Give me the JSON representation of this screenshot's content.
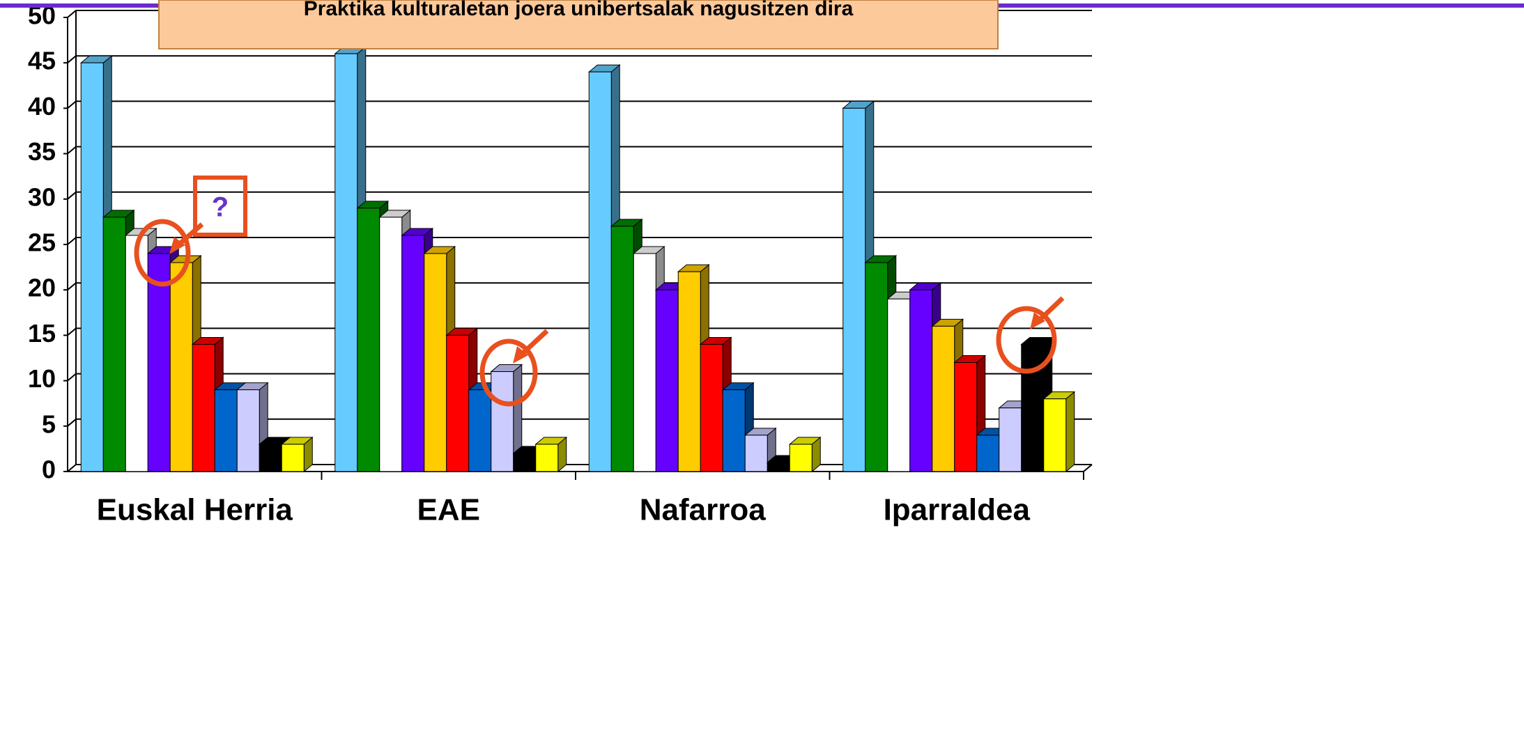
{
  "chart_data": {
    "type": "bar3d",
    "title": "Praktika kulturaletan joera unibertsalak nagusitzen dira",
    "categories": [
      "Euskal Herria",
      "EAE",
      "Nafarroa",
      "Iparraldea"
    ],
    "series": [
      {
        "color": "#66ccff",
        "values": [
          45,
          46,
          44,
          40
        ]
      },
      {
        "color": "#008a00",
        "values": [
          28,
          29,
          27,
          23
        ]
      },
      {
        "color": "#ffffff",
        "values": [
          26,
          28,
          24,
          19
        ]
      },
      {
        "color": "#6600ff",
        "values": [
          24,
          26,
          20,
          20
        ]
      },
      {
        "color": "#ffcc00",
        "values": [
          23,
          24,
          22,
          16
        ]
      },
      {
        "color": "#ff0000",
        "values": [
          14,
          15,
          14,
          12
        ]
      },
      {
        "color": "#0066cc",
        "values": [
          9,
          9,
          9,
          4
        ]
      },
      {
        "color": "#ccccff",
        "values": [
          9,
          11,
          4,
          7
        ]
      },
      {
        "color": "#000000",
        "values": [
          3,
          2,
          1,
          14
        ]
      },
      {
        "color": "#ffff00",
        "values": [
          3,
          3,
          3,
          8
        ]
      }
    ],
    "ylim": [
      0,
      50
    ],
    "yticks": [
      0,
      5,
      10,
      15,
      20,
      25,
      30,
      35,
      40,
      45,
      50
    ],
    "grid": true,
    "annotations": [
      "?"
    ]
  }
}
